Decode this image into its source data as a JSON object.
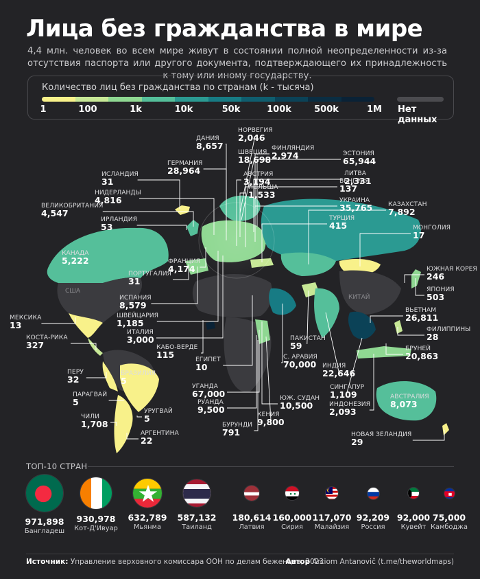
{
  "title": "Лица без гражданства в мире",
  "subtitle": "4,4 млн. человек во всем мире живут в состоянии полной неопределенности из-за отсутствия паспорта или другого документа, подтверждающего их принадлежность к тому или иному государству.",
  "legend": {
    "title": "Количество лиц без гражданства по странам (k - тысяча)",
    "colors": [
      "#f8f18a",
      "#c7e896",
      "#8fd892",
      "#55bf9a",
      "#2b9a92",
      "#177b84",
      "#0f5d6e",
      "#0b4257",
      "#0a2d42",
      "#0a2236"
    ],
    "ticks": [
      "1",
      "100",
      "1k",
      "10k",
      "50k",
      "100k",
      "500k",
      "1M"
    ],
    "nodata_label": "Нет данных",
    "nodata_color": "#4b4b4f"
  },
  "map": {
    "ghost_labels": {
      "usa": "США",
      "china": "КИТАЙ"
    },
    "countries": [
      {
        "id": "norway",
        "name": "НОРВЕГИЯ",
        "value": "2,046"
      },
      {
        "id": "denmark",
        "name": "ДАНИЯ",
        "value": "8,657"
      },
      {
        "id": "finland",
        "name": "ФИНЛЯНДИЯ",
        "value": "2,974"
      },
      {
        "id": "sweden",
        "name": "ШВЕЦИЯ",
        "value": "18,698"
      },
      {
        "id": "germany",
        "name": "ГЕРМАНИЯ",
        "value": "28,964"
      },
      {
        "id": "estonia",
        "name": "ЭСТОНИЯ",
        "value": "65,944"
      },
      {
        "id": "austria",
        "name": "АВСТРИЯ",
        "value": "3,194"
      },
      {
        "id": "lithuania",
        "name": "ЛИТВА",
        "value": "2,331"
      },
      {
        "id": "iceland",
        "name": "ИСЛАНДИЯ",
        "value": "31"
      },
      {
        "id": "poland",
        "name": "ПОЛЬША",
        "value": "1,533"
      },
      {
        "id": "hungary",
        "name": "ВЕНГРИЯ",
        "value": "137"
      },
      {
        "id": "netherlands",
        "name": "НИДЕРЛАНДЫ",
        "value": "4,816"
      },
      {
        "id": "ukraine",
        "name": "УКРАИНА",
        "value": "35,765"
      },
      {
        "id": "uk",
        "name": "ВЕЛИКОБРИТАНИЯ",
        "value": "4,547"
      },
      {
        "id": "kazakhstan",
        "name": "КАЗАХСТАН",
        "value": "7,892"
      },
      {
        "id": "ireland",
        "name": "ИРЛАНДИЯ",
        "value": "53"
      },
      {
        "id": "turkey",
        "name": "ТУРЦИЯ",
        "value": "415"
      },
      {
        "id": "mongolia",
        "name": "МОНГОЛИЯ",
        "value": "17"
      },
      {
        "id": "canada",
        "name": "КАНАДА",
        "value": "5,222"
      },
      {
        "id": "france",
        "name": "ФРАНЦИЯ",
        "value": "4,174"
      },
      {
        "id": "south_korea",
        "name": "ЮЖНАЯ КОРЕЯ",
        "value": "246"
      },
      {
        "id": "portugal",
        "name": "ПОРТУГАЛИЯ",
        "value": "31"
      },
      {
        "id": "japan",
        "name": "ЯПОНИЯ",
        "value": "503"
      },
      {
        "id": "spain",
        "name": "ИСПАНИЯ",
        "value": "8,579"
      },
      {
        "id": "mexico",
        "name": "МЕКСИКА",
        "value": "13"
      },
      {
        "id": "switzerland",
        "name": "ШВЕЙЦАРИЯ",
        "value": "1,185"
      },
      {
        "id": "vietnam",
        "name": "ВЬЕТНАМ",
        "value": "26,811"
      },
      {
        "id": "italy",
        "name": "ИТАЛИЯ",
        "value": "3,000"
      },
      {
        "id": "philippines",
        "name": "ФИЛИППИНЫ",
        "value": "28"
      },
      {
        "id": "costa_rica",
        "name": "КОСТА-РИКА",
        "value": "327"
      },
      {
        "id": "pakistan",
        "name": "ПАКИСТАН",
        "value": "59"
      },
      {
        "id": "cape_verde",
        "name": "КАБО-ВЕРДЕ",
        "value": "115"
      },
      {
        "id": "brunei",
        "name": "БРУНЕЙ",
        "value": "20,863"
      },
      {
        "id": "saudi",
        "name": "С. АРАВИЯ",
        "value": "70,000"
      },
      {
        "id": "egypt",
        "name": "ЕГИПЕТ",
        "value": "10"
      },
      {
        "id": "peru",
        "name": "ПЕРУ",
        "value": "32"
      },
      {
        "id": "brazil",
        "name": "БРАЗИЛИЯ",
        "value": "5"
      },
      {
        "id": "india",
        "name": "ИНДИЯ",
        "value": "22,646"
      },
      {
        "id": "uganda",
        "name": "УГАНДА",
        "value": "67,000"
      },
      {
        "id": "singapore",
        "name": "СИНГАПУР",
        "value": "1,109"
      },
      {
        "id": "paraguay",
        "name": "ПАРАГВАЙ",
        "value": "5"
      },
      {
        "id": "south_sudan",
        "name": "ЮЖ. СУДАН",
        "value": "10,500"
      },
      {
        "id": "rwanda",
        "name": "РУАНДА",
        "value": "9,500"
      },
      {
        "id": "australia",
        "name": "АВСТРАЛИЯ",
        "value": "8,073"
      },
      {
        "id": "uruguay",
        "name": "УРУГВАЙ",
        "value": "5"
      },
      {
        "id": "indonesia",
        "name": "ИНДОНЕЗИЯ",
        "value": "2,093"
      },
      {
        "id": "chile",
        "name": "ЧИЛИ",
        "value": "1,708"
      },
      {
        "id": "kenya",
        "name": "КЕНИЯ",
        "value": "9,800"
      },
      {
        "id": "argentina",
        "name": "АРГЕНТИНА",
        "value": "22"
      },
      {
        "id": "burundi",
        "name": "БУРУНДИ",
        "value": "791"
      },
      {
        "id": "new_zealand",
        "name": "НОВАЯ ЗЕЛАНДИЯ",
        "value": "29"
      }
    ]
  },
  "top10": {
    "title": "ТОП-10 СТРАН",
    "items": [
      {
        "value": "971,898",
        "name": "Бангладеш"
      },
      {
        "value": "930,978",
        "name": "Кот-Д'Ивуар"
      },
      {
        "value": "632,789",
        "name": "Мьянма"
      },
      {
        "value": "587,132",
        "name": "Таиланд"
      },
      {
        "value": "180,614",
        "name": "Латвия"
      },
      {
        "value": "160,000",
        "name": "Сирия"
      },
      {
        "value": "117,070",
        "name": "Малайзия"
      },
      {
        "value": "92,209",
        "name": "Россия"
      },
      {
        "value": "92,000",
        "name": "Кувейт"
      },
      {
        "value": "75,000",
        "name": "Камбоджа"
      }
    ]
  },
  "footer": {
    "source_label": "Источник:",
    "source_text": "Управление верховного комиссара ООН по делам беженцев, 2023",
    "author_label": "Автор",
    "author_text": "Arciom Antanovič (t.me/theworldmaps)"
  }
}
